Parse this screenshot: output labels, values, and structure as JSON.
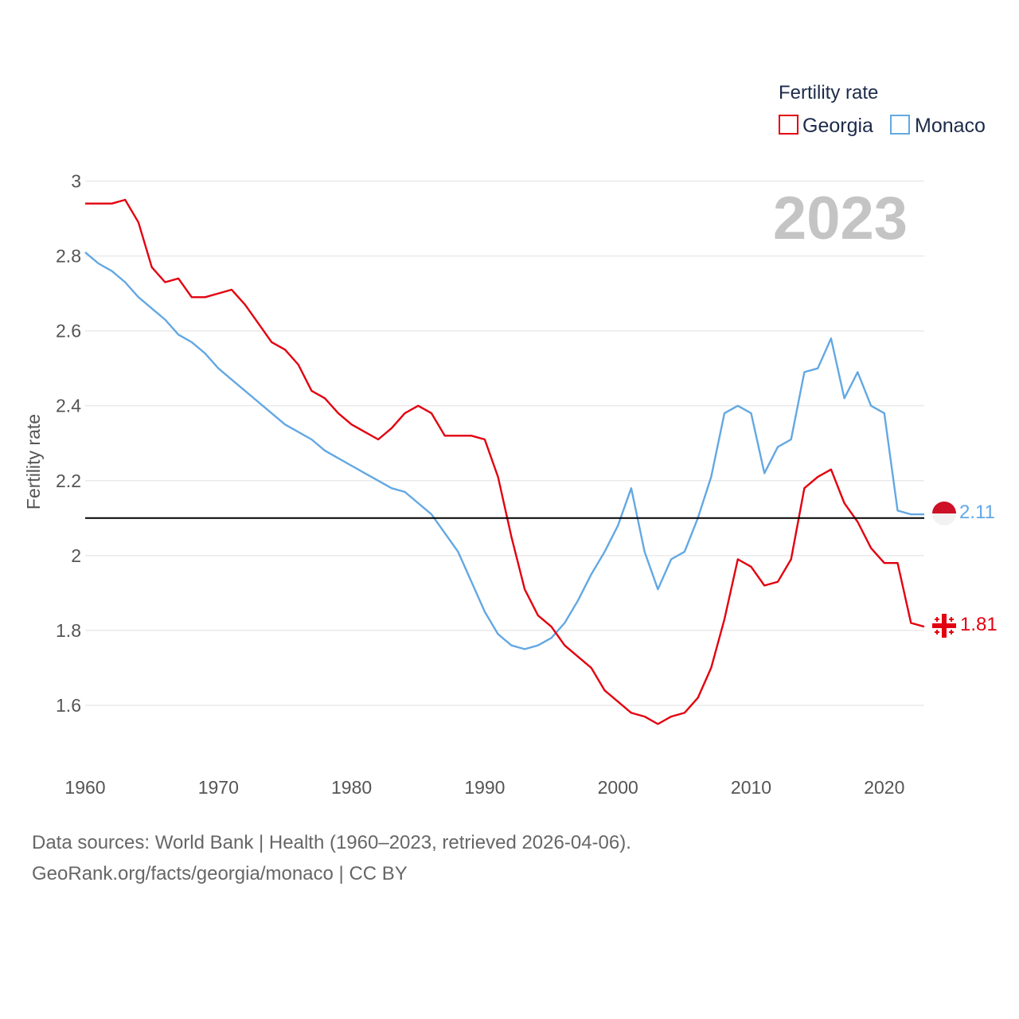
{
  "chart_data": {
    "type": "line",
    "legend_title": "Fertility rate",
    "ylabel": "Fertility rate",
    "xlabel": "",
    "year_label": "2023",
    "xlim": [
      1960,
      2023
    ],
    "ylim": [
      1.5,
      3.05
    ],
    "x_ticks": [
      1960,
      1970,
      1980,
      1990,
      2000,
      2010,
      2020
    ],
    "y_ticks": [
      1.6,
      1.8,
      2,
      2.2,
      2.4,
      2.6,
      2.8,
      3
    ],
    "y_tick_labels": [
      "1.6",
      "1.8",
      "2",
      "2.2",
      "2.4",
      "2.6",
      "2.8",
      "3"
    ],
    "reference_line": 2.1,
    "grid": true,
    "legend_position": "top-right",
    "years": [
      1960,
      1961,
      1962,
      1963,
      1964,
      1965,
      1966,
      1967,
      1968,
      1969,
      1970,
      1971,
      1972,
      1973,
      1974,
      1975,
      1976,
      1977,
      1978,
      1979,
      1980,
      1981,
      1982,
      1983,
      1984,
      1985,
      1986,
      1987,
      1988,
      1989,
      1990,
      1991,
      1992,
      1993,
      1994,
      1995,
      1996,
      1997,
      1998,
      1999,
      2000,
      2001,
      2002,
      2003,
      2004,
      2005,
      2006,
      2007,
      2008,
      2009,
      2010,
      2011,
      2012,
      2013,
      2014,
      2015,
      2016,
      2017,
      2018,
      2019,
      2020,
      2021,
      2022,
      2023
    ],
    "series": [
      {
        "name": "Georgia",
        "color": "#e3000f",
        "end_label": "1.81",
        "flag": "georgia-flag",
        "values": [
          2.94,
          2.94,
          2.94,
          2.95,
          2.89,
          2.77,
          2.73,
          2.74,
          2.69,
          2.69,
          2.7,
          2.71,
          2.67,
          2.62,
          2.57,
          2.55,
          2.51,
          2.44,
          2.42,
          2.38,
          2.35,
          2.33,
          2.31,
          2.34,
          2.38,
          2.4,
          2.38,
          2.32,
          2.32,
          2.32,
          2.31,
          2.21,
          2.05,
          1.91,
          1.84,
          1.81,
          1.76,
          1.73,
          1.7,
          1.64,
          1.61,
          1.58,
          1.57,
          1.55,
          1.57,
          1.58,
          1.62,
          1.7,
          1.83,
          1.99,
          1.97,
          1.92,
          1.93,
          1.99,
          2.18,
          2.21,
          2.23,
          2.14,
          2.09,
          2.02,
          1.98,
          1.98,
          1.82,
          1.81
        ]
      },
      {
        "name": "Monaco",
        "color": "#63a8e3",
        "end_label": "2.11",
        "flag": "monaco-flag",
        "values": [
          2.81,
          2.78,
          2.76,
          2.73,
          2.69,
          2.66,
          2.63,
          2.59,
          2.57,
          2.54,
          2.5,
          2.47,
          2.44,
          2.41,
          2.38,
          2.35,
          2.33,
          2.31,
          2.28,
          2.26,
          2.24,
          2.22,
          2.2,
          2.18,
          2.17,
          2.14,
          2.11,
          2.06,
          2.01,
          1.93,
          1.85,
          1.79,
          1.76,
          1.75,
          1.76,
          1.78,
          1.82,
          1.88,
          1.95,
          2.01,
          2.08,
          2.18,
          2.01,
          1.91,
          1.99,
          2.01,
          2.1,
          2.21,
          2.38,
          2.4,
          2.38,
          2.22,
          2.29,
          2.31,
          2.49,
          2.5,
          2.58,
          2.42,
          2.49,
          2.4,
          2.38,
          2.12,
          2.11,
          2.11
        ]
      }
    ]
  },
  "footer": {
    "line1": "Data sources: World Bank | Health (1960–2023, retrieved 2026-04-06).",
    "line2": "GeoRank.org/facts/georgia/monaco | CC BY"
  }
}
